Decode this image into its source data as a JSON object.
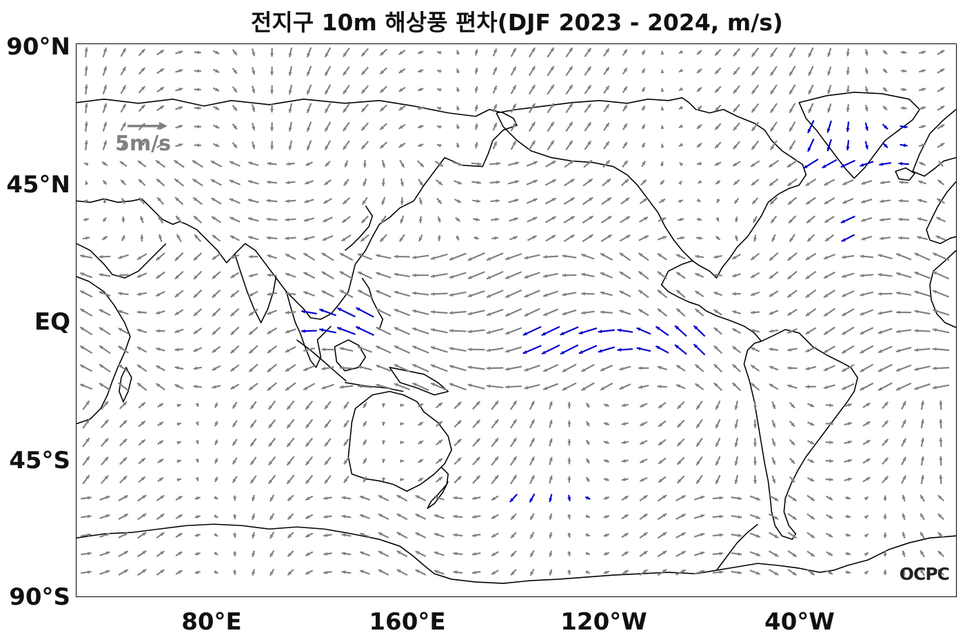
{
  "title": "전지구 10m 해상풍 편차(DJF 2023 - 2024, m/s)",
  "map": {
    "lat_labels": [
      "90°N",
      "45°N",
      "EQ",
      "45°S",
      "90°S"
    ],
    "lon_labels": [
      "80°E",
      "160°E",
      "120°W",
      "40°W"
    ],
    "reference_vector": {
      "label": "5m/s",
      "magnitude": 5,
      "unit": "m/s"
    },
    "colors": {
      "normal_vector": "#808080",
      "significant_vector": "#0000cc",
      "coastline": "#000000"
    },
    "logo": "OCPC"
  }
}
